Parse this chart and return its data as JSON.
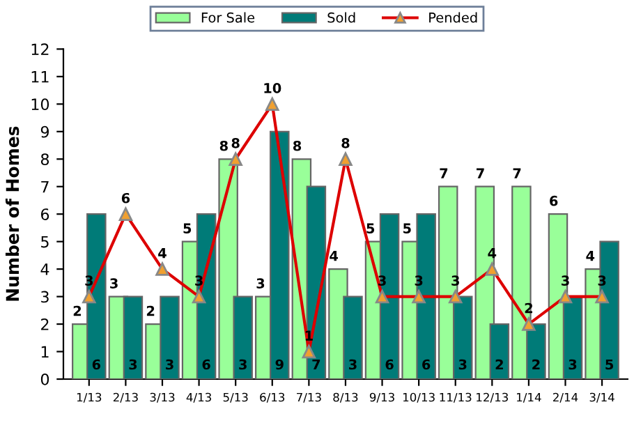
{
  "chart_data": {
    "type": "bar",
    "ylabel": "Number of Homes",
    "categories": [
      "1/13",
      "2/13",
      "3/13",
      "4/13",
      "5/13",
      "6/13",
      "7/13",
      "8/13",
      "9/13",
      "10/13",
      "11/13",
      "12/13",
      "1/14",
      "2/14",
      "3/14"
    ],
    "series": [
      {
        "name": "For Sale",
        "color": "#99ff99",
        "values": [
          2,
          3,
          2,
          5,
          8,
          3,
          8,
          4,
          5,
          5,
          7,
          7,
          7,
          6,
          4
        ]
      },
      {
        "name": "Sold",
        "color": "#007b78",
        "values": [
          6,
          3,
          3,
          6,
          3,
          9,
          7,
          3,
          6,
          6,
          3,
          2,
          2,
          3,
          5
        ]
      },
      {
        "name": "Pended",
        "type": "line",
        "color": "#dd0000",
        "marker": "triangle",
        "values": [
          3,
          6,
          4,
          3,
          8,
          10,
          1,
          8,
          3,
          3,
          3,
          4,
          2,
          3,
          3
        ]
      }
    ],
    "ylim": [
      0,
      12
    ],
    "yticks": [
      0,
      1,
      2,
      3,
      4,
      5,
      6,
      7,
      8,
      9,
      10,
      11,
      12
    ],
    "data_labels": true,
    "grid": false,
    "legend": "top"
  }
}
